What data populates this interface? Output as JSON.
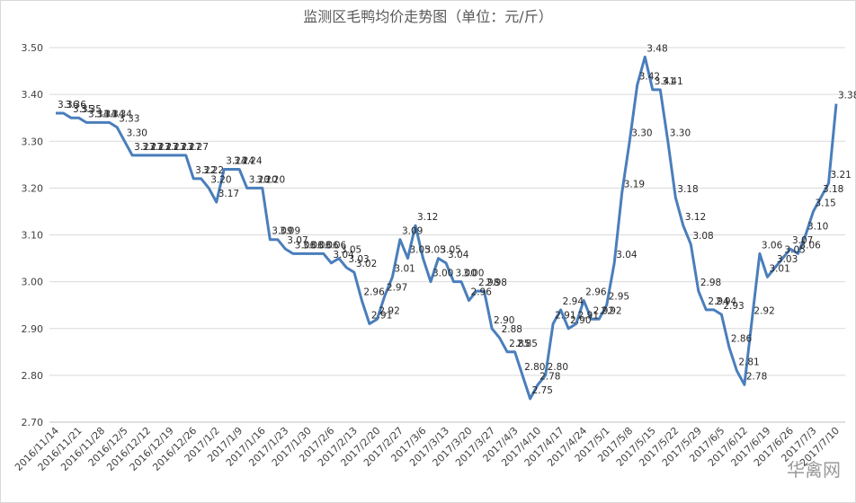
{
  "chart_data": {
    "type": "line",
    "title": "监测区毛鸭均价走势图（单位：元/斤）",
    "watermark": "华禽网",
    "color": "#4a7ebb",
    "grid": true,
    "ylim": [
      2.7,
      3.5
    ],
    "yticks": [
      {
        "value": 2.7,
        "label": "2.70"
      },
      {
        "value": 2.8,
        "label": "2.80"
      },
      {
        "value": 2.9,
        "label": "2.90"
      },
      {
        "value": 3.0,
        "label": "3.00"
      },
      {
        "value": 3.1,
        "label": "3.10"
      },
      {
        "value": 3.2,
        "label": "3.20"
      },
      {
        "value": 3.3,
        "label": "3.30"
      },
      {
        "value": 3.4,
        "label": "3.40"
      },
      {
        "value": 3.5,
        "label": "3.50"
      }
    ],
    "categories": [
      "2016/11/14",
      null,
      null,
      "2016/11/21",
      null,
      null,
      "2016/11/28",
      null,
      null,
      "2016/12/5",
      null,
      null,
      "2016/12/12",
      null,
      null,
      "2016/12/19",
      null,
      null,
      "2016/12/26",
      null,
      null,
      "2017/1/2",
      null,
      null,
      "2017/1/9",
      null,
      null,
      "2017/1/16",
      null,
      null,
      "2017/1/23",
      null,
      null,
      "2017/1/30",
      null,
      null,
      "2017/2/6",
      null,
      null,
      "2017/2/13",
      null,
      null,
      "2017/2/20",
      null,
      null,
      "2017/2/27",
      null,
      null,
      "2017/3/6",
      null,
      null,
      "2017/3/13",
      null,
      null,
      "2017/3/20",
      null,
      null,
      "2017/3/27",
      null,
      null,
      "2017/4/3",
      null,
      null,
      "2017/4/10",
      null,
      null,
      "2017/4/17",
      null,
      null,
      "2017/4/24",
      null,
      null,
      "2017/5/1",
      null,
      null,
      "2017/5/8",
      null,
      null,
      "2017/5/15",
      null,
      null,
      "2017/5/22",
      null,
      null,
      "2017/5/29",
      null,
      null,
      "2017/6/5",
      null,
      null,
      "2017/6/12",
      null,
      null,
      "2017/6/19",
      null,
      null,
      "2017/6/26",
      null,
      null,
      "2017/7/3",
      null,
      null,
      "2017/7/10"
    ],
    "values": [
      3.36,
      3.36,
      3.35,
      3.35,
      3.34,
      3.34,
      3.34,
      3.34,
      3.33,
      3.3,
      3.27,
      3.27,
      3.27,
      3.27,
      3.27,
      3.27,
      3.27,
      3.27,
      3.22,
      3.22,
      3.2,
      3.17,
      3.24,
      3.24,
      3.24,
      3.2,
      3.2,
      3.2,
      3.09,
      3.09,
      3.07,
      3.06,
      3.06,
      3.06,
      3.06,
      3.06,
      3.04,
      3.05,
      3.03,
      3.02,
      2.96,
      2.91,
      2.92,
      2.97,
      3.01,
      3.09,
      3.05,
      3.12,
      3.05,
      3.0,
      3.05,
      3.04,
      3.0,
      3.0,
      2.96,
      2.98,
      2.98,
      2.9,
      2.88,
      2.85,
      2.85,
      2.8,
      2.75,
      2.78,
      2.8,
      2.91,
      2.94,
      2.9,
      2.91,
      2.96,
      2.92,
      2.92,
      2.95,
      3.04,
      3.19,
      3.3,
      3.42,
      3.48,
      3.41,
      3.41,
      3.3,
      3.18,
      3.12,
      3.08,
      2.98,
      2.94,
      2.94,
      2.93,
      2.86,
      2.81,
      2.78,
      2.92,
      3.06,
      3.01,
      3.03,
      3.05,
      3.07,
      3.06,
      3.1,
      3.15,
      3.18,
      3.21,
      3.38
    ],
    "value_labels": [
      "3.36",
      "3.36",
      "3.35",
      "3.35",
      "3.34",
      "3.34",
      "3.34",
      "3.34",
      "3.33",
      "3.30",
      "3.27",
      "3.27",
      "3.27",
      "3.27",
      "3.27",
      "3.27",
      "3.27",
      "3.27",
      "3.22",
      "3.22",
      "3.20",
      "3.17",
      "3.24",
      "3.24",
      "3.24",
      "3.20",
      "3.20",
      "3.20",
      "3.09",
      "3.09",
      "3.07",
      "3.06",
      "3.06",
      "3.06",
      "3.06",
      "3.06",
      "3.04",
      "3.05",
      "3.03",
      "3.02",
      "2.96",
      "2.91",
      "2.92",
      "2.97",
      "3.01",
      "3.09",
      "3.05",
      "3.12",
      "3.05",
      "3.00",
      "3.05",
      "3.04",
      "3.00",
      "3.00",
      "2.96",
      "2.98",
      "2.98",
      "2.90",
      "2.88",
      "2.85",
      "2.85",
      "2.80",
      "2.75",
      "2.78",
      "2.80",
      "2.91",
      "2.94",
      "2.90",
      "2.91",
      "2.96",
      "2.92",
      "2.92",
      "2.95",
      "3.04",
      "3.19",
      "3.30",
      "3.42",
      "3.48",
      "3.41",
      "3.41",
      "3.30",
      "3.18",
      "3.12",
      "3.08",
      "2.98",
      "2.94",
      "2.94",
      "2.93",
      "2.86",
      "2.81",
      "2.78",
      "2.92",
      "3.06",
      "3.01",
      "3.03",
      "3.05",
      "3.07",
      "3.06",
      "3.10",
      "3.15",
      "3.18",
      "3.21",
      "3.38"
    ]
  }
}
